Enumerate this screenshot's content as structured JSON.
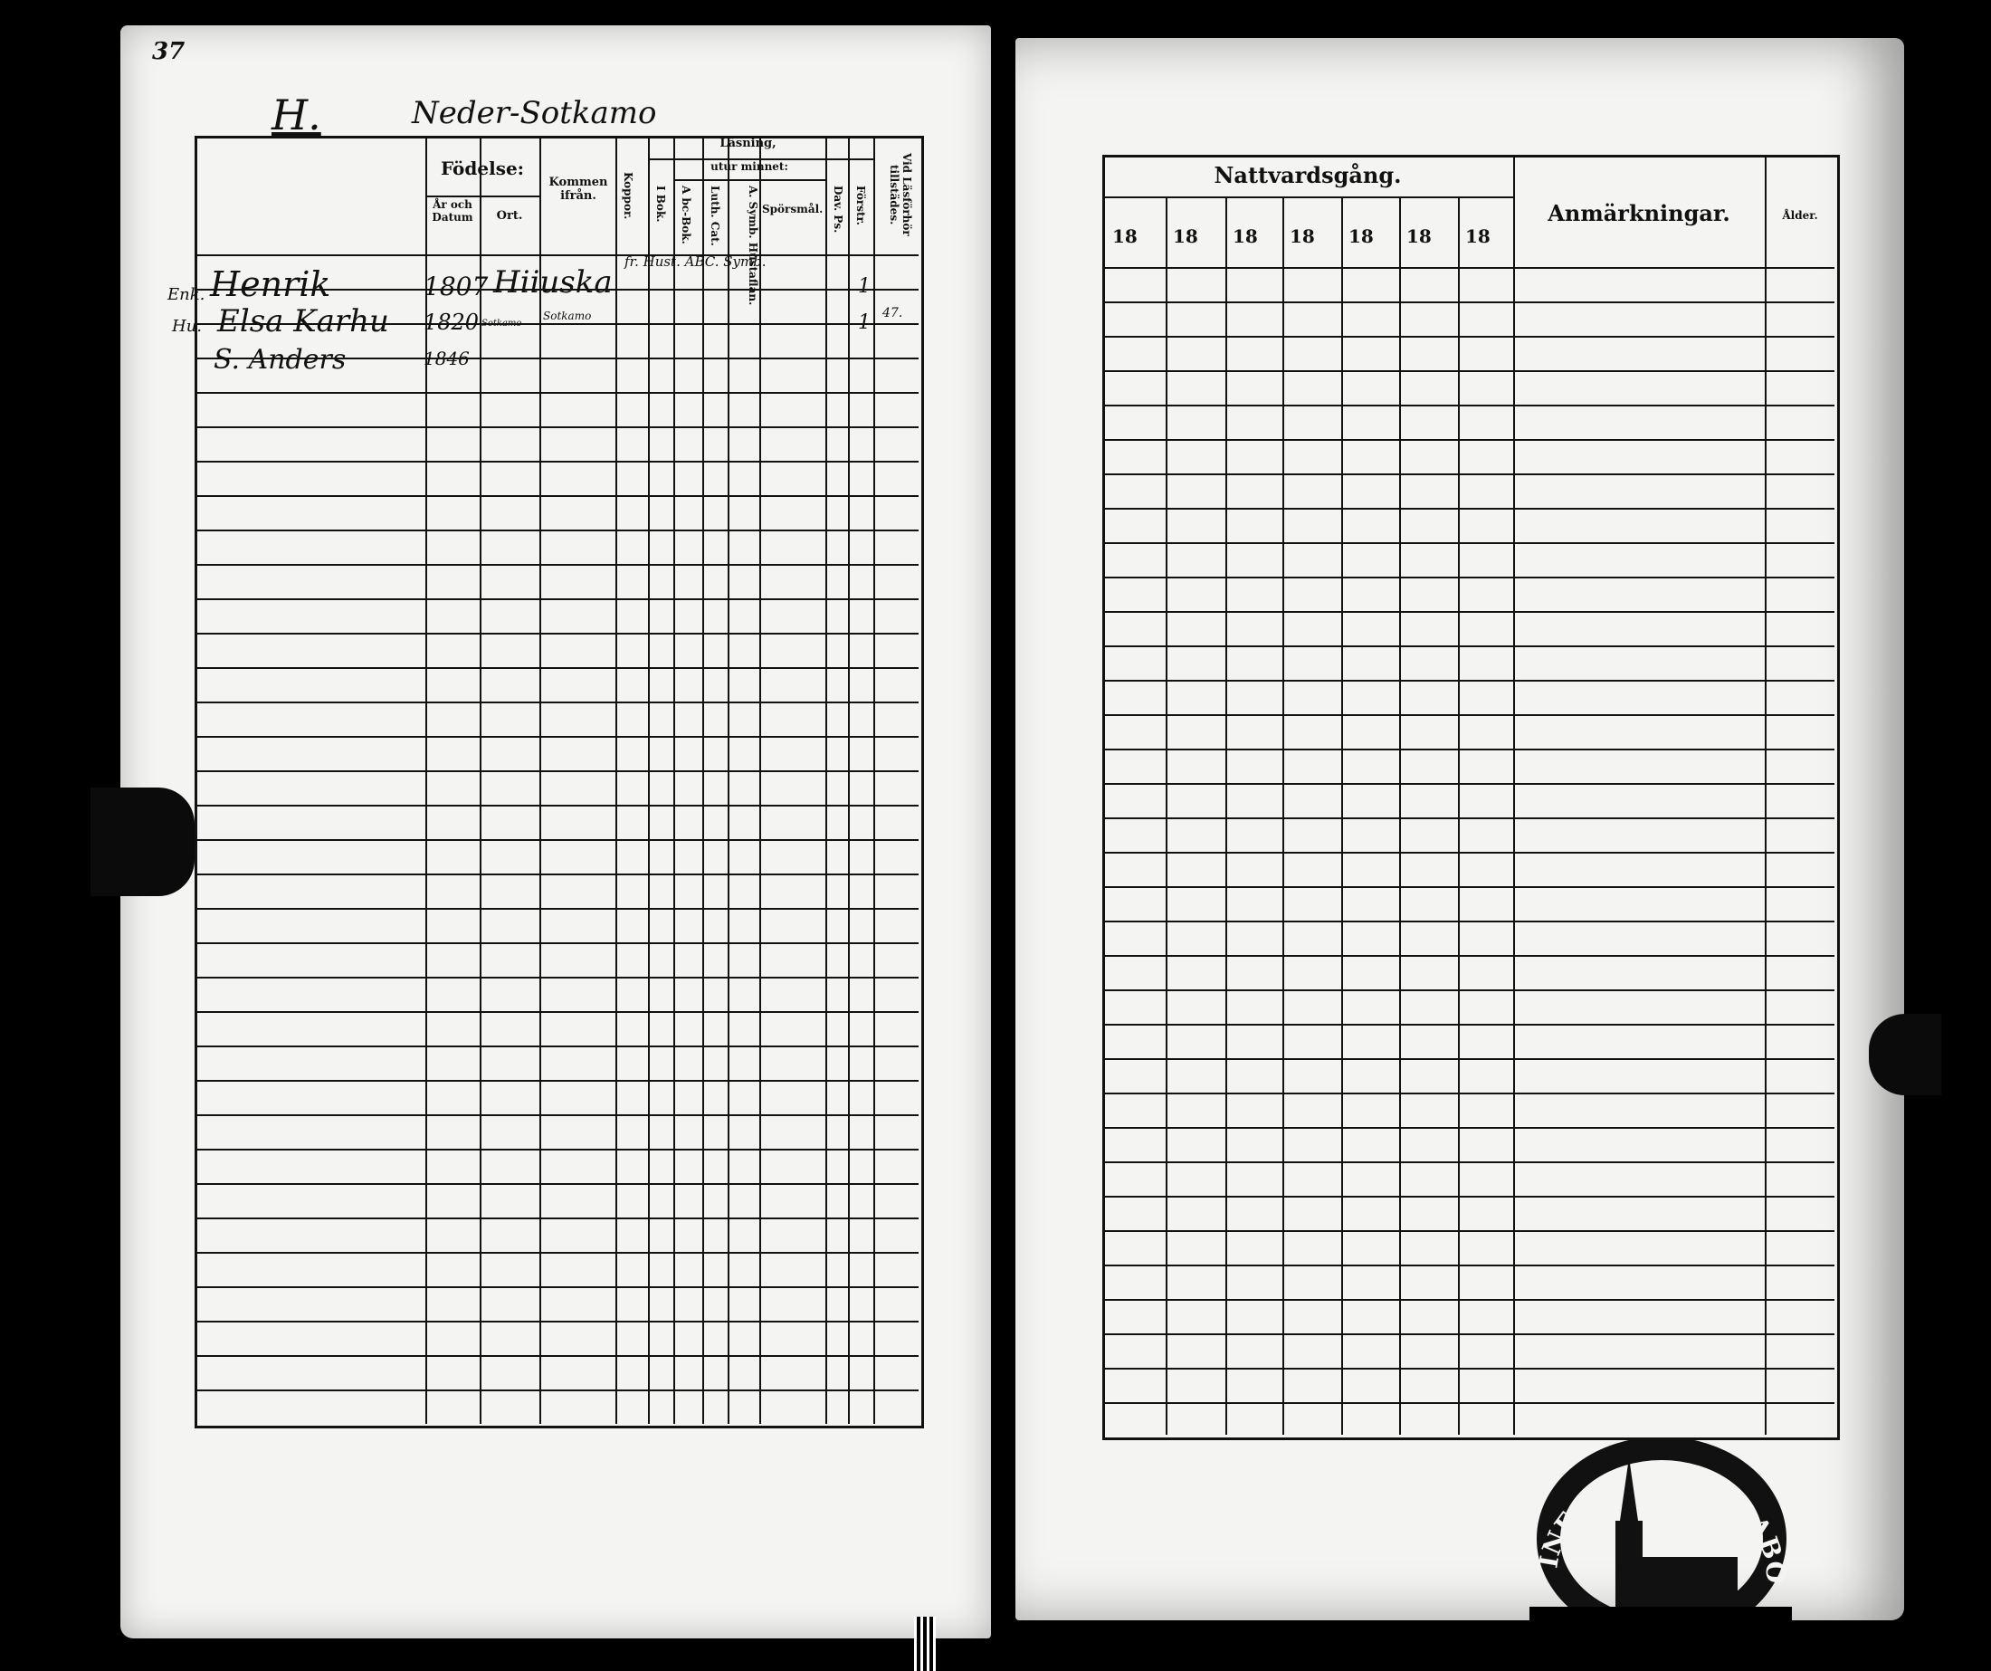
{
  "left_page": {
    "page_number": "37",
    "household_letter": "H.",
    "village": "Neder-Sotkamo",
    "headers": {
      "name": "",
      "birth": "Födelse:",
      "year_date": "År och Datum",
      "place": "Ort.",
      "came_from": "Kommen ifrån.",
      "smallpox": "Koppor.",
      "reading": "Läsning,",
      "by_heart": "utur minnet:",
      "book": "I Bok.",
      "abc_book": "A bc-Bok.",
      "luther_cat": "Luth. Cat.",
      "symb": "A. Symb. Hustaflan.",
      "questions": "Spörsmål.",
      "psalms": "Dav. Ps.",
      "understanding": "Förstr.",
      "attendance": "Vid Läsförhör tillstädes."
    },
    "annotation_row": "fr. Hust. ABC. Symb.",
    "entries": [
      {
        "margin": "Enk.",
        "name": "Henrik",
        "birth": "1807",
        "place": "Hiiuska",
        "came_from": "",
        "understanding": "1",
        "attendance": ""
      },
      {
        "margin": "Hu.",
        "name": "Elsa Karhu",
        "birth": "1820",
        "place": "Sotkamo",
        "came_from": "Sotkamo",
        "understanding": "1",
        "attendance": "47."
      },
      {
        "margin": "",
        "name": "S. Anders",
        "birth": "1846",
        "place": "",
        "came_from": "",
        "understanding": "",
        "attendance": ""
      }
    ]
  },
  "right_page": {
    "communion_header": "Nattvardsgång.",
    "year_prefixes": [
      "18",
      "18",
      "18",
      "18",
      "18",
      "18",
      "18"
    ],
    "remarks_header": "Anmärkningar.",
    "age_header": "Ålder."
  },
  "stamp": {
    "text": "INF. DIOECESIS ABOENSIS MAG."
  }
}
